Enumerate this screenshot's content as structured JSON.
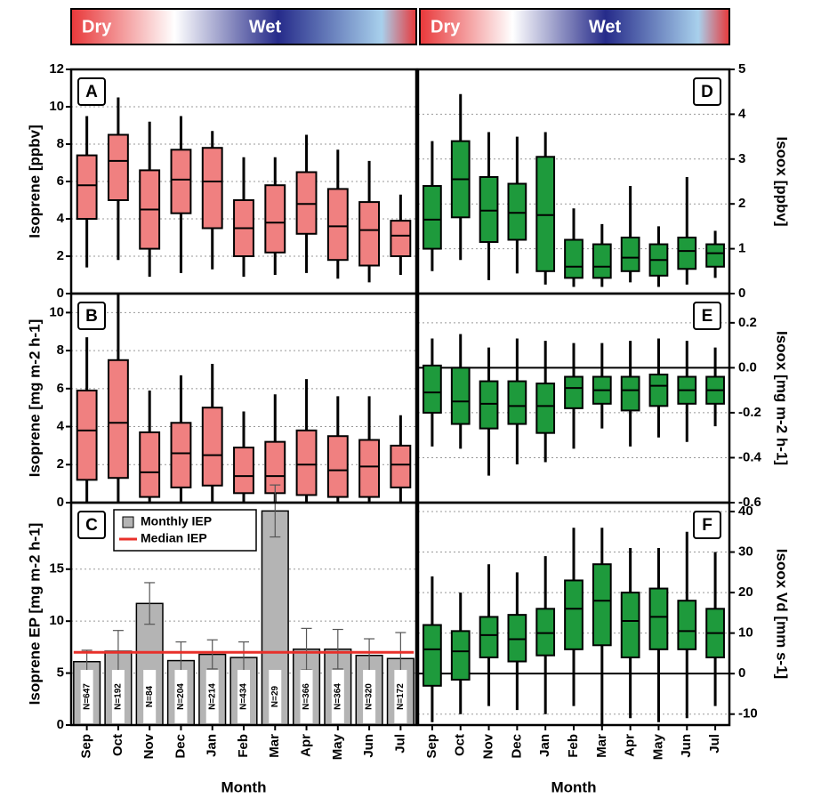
{
  "season_bars": [
    {
      "dry": "Dry",
      "wet": "Wet"
    },
    {
      "dry": "Dry",
      "wet": "Wet"
    }
  ],
  "chart_data": [
    {
      "type": "box",
      "panel_label": "A",
      "panel_label_corner": "upper left",
      "ylabel": "Isoprene [ppbv]",
      "y_axis_side": "left",
      "grid": true,
      "color": "#f08080",
      "ylim": [
        0,
        12
      ],
      "yticks": [
        0,
        2,
        4,
        6,
        8,
        10,
        12
      ],
      "whisker_low": [
        1.4,
        1.8,
        0.9,
        1.1,
        1.3,
        0.9,
        1.0,
        1.1,
        0.8,
        0.6,
        1.0
      ],
      "q1": [
        4.0,
        5.0,
        2.4,
        4.3,
        3.5,
        2.0,
        2.2,
        3.2,
        1.8,
        1.5,
        2.0
      ],
      "median": [
        5.8,
        7.1,
        4.5,
        6.1,
        6.0,
        3.5,
        3.8,
        4.8,
        3.6,
        3.4,
        3.1
      ],
      "q3": [
        7.4,
        8.5,
        6.6,
        7.7,
        7.8,
        5.0,
        5.8,
        6.5,
        5.6,
        4.9,
        3.9
      ],
      "whisker_high": [
        9.5,
        10.5,
        9.2,
        9.5,
        8.7,
        7.3,
        7.3,
        8.5,
        7.7,
        7.1,
        5.3
      ]
    },
    {
      "type": "box",
      "panel_label": "B",
      "panel_label_corner": "upper left",
      "ylabel": "Isoprene [mg m-2 h-1]",
      "y_axis_side": "left",
      "grid": true,
      "color": "#f08080",
      "ylim": [
        0,
        11
      ],
      "yticks": [
        0,
        2,
        4,
        6,
        8,
        10
      ],
      "whisker_low": [
        0,
        0,
        0,
        0,
        0,
        0,
        0,
        0,
        0,
        0,
        0
      ],
      "q1": [
        1.2,
        1.3,
        0.3,
        0.8,
        0.9,
        0.5,
        0.5,
        0.4,
        0.3,
        0.3,
        0.8
      ],
      "median": [
        3.8,
        4.2,
        1.6,
        2.6,
        2.5,
        1.4,
        1.4,
        2.0,
        1.7,
        1.9,
        2.0
      ],
      "q3": [
        5.9,
        7.5,
        3.7,
        4.2,
        5.0,
        2.9,
        3.2,
        3.8,
        3.5,
        3.3,
        3.0
      ],
      "whisker_high": [
        8.7,
        11,
        5.9,
        6.7,
        7.3,
        4.8,
        5.7,
        6.5,
        5.6,
        5.6,
        4.6
      ]
    },
    {
      "type": "bar",
      "panel_label": "C",
      "panel_label_corner": "upper left",
      "ylabel": "Isoprene EP [mg m-2 h-1]",
      "xlabel": "Month",
      "y_axis_side": "left",
      "grid": true,
      "legend": "upper left",
      "categories": [
        "Sep",
        "Oct",
        "Nov",
        "Dec",
        "Jan",
        "Feb",
        "Mar",
        "Apr",
        "May",
        "Jun",
        "Jul"
      ],
      "ylim": [
        0,
        21.4
      ],
      "yticks": [
        0,
        5,
        10,
        15
      ],
      "series": [
        {
          "name": "Monthly IEP",
          "color": "#b4b4b4",
          "values": [
            6.1,
            7.1,
            11.7,
            6.2,
            6.8,
            6.5,
            20.6,
            7.3,
            7.3,
            6.7,
            6.4
          ],
          "error": [
            1.1,
            2.0,
            2.0,
            1.8,
            1.4,
            1.5,
            2.5,
            2.0,
            1.9,
            1.6,
            2.5
          ],
          "n_labels": [
            "N=647",
            "N=192",
            "N=84",
            "N=204",
            "N=214",
            "N=434",
            "N=29",
            "N=366",
            "N=364",
            "N=320",
            "N=172"
          ]
        },
        {
          "name": "Median IEP",
          "color": "#e8302a",
          "type": "hline",
          "value": 7.0
        }
      ]
    },
    {
      "type": "box",
      "panel_label": "D",
      "panel_label_corner": "upper right",
      "ylabel": "Isoox [ppbv]",
      "y_axis_side": "right",
      "grid": true,
      "color": "#1e9a3c",
      "ylim": [
        0,
        5
      ],
      "yticks": [
        0,
        1,
        2,
        3,
        4,
        5
      ],
      "whisker_low": [
        0.5,
        0.75,
        0.3,
        0.45,
        0.2,
        0.15,
        0.15,
        0.25,
        0.15,
        0.2,
        0.35
      ],
      "q1": [
        1.0,
        1.7,
        1.15,
        1.2,
        0.5,
        0.35,
        0.35,
        0.5,
        0.4,
        0.55,
        0.6
      ],
      "median": [
        1.65,
        2.55,
        1.85,
        1.8,
        1.75,
        0.6,
        0.6,
        0.8,
        0.75,
        0.95,
        0.9
      ],
      "q3": [
        2.4,
        3.4,
        2.6,
        2.45,
        3.05,
        1.2,
        1.1,
        1.25,
        1.1,
        1.25,
        1.1
      ],
      "whisker_high": [
        3.4,
        4.45,
        3.6,
        3.5,
        3.6,
        1.9,
        1.55,
        2.4,
        1.5,
        2.6,
        1.4
      ]
    },
    {
      "type": "box",
      "panel_label": "E",
      "panel_label_corner": "upper right",
      "ylabel": "Isoox [mg m-2 h-1]",
      "y_axis_side": "right",
      "grid": true,
      "zero_line": true,
      "color": "#1e9a3c",
      "ylim": [
        -0.6,
        0.33
      ],
      "yticks": [
        -0.6,
        -0.4,
        -0.2,
        {
          "value": 0,
          "label": "0.0"
        },
        0.2
      ],
      "whisker_low": [
        -0.35,
        -0.36,
        -0.48,
        -0.43,
        -0.42,
        -0.36,
        -0.27,
        -0.35,
        -0.31,
        -0.33,
        -0.26
      ],
      "q1": [
        -0.2,
        -0.25,
        -0.27,
        -0.25,
        -0.29,
        -0.18,
        -0.16,
        -0.19,
        -0.17,
        -0.16,
        -0.16
      ],
      "median": [
        -0.11,
        -0.15,
        -0.16,
        -0.17,
        -0.17,
        -0.09,
        -0.1,
        -0.1,
        -0.08,
        -0.1,
        -0.1
      ],
      "q3": [
        0.01,
        0.0,
        -0.06,
        -0.06,
        -0.07,
        -0.04,
        -0.04,
        -0.04,
        -0.03,
        -0.04,
        -0.04
      ],
      "whisker_high": [
        0.13,
        0.15,
        0.09,
        0.13,
        0.12,
        0.11,
        0.11,
        0.12,
        0.13,
        0.12,
        0.09
      ]
    },
    {
      "type": "box",
      "panel_label": "F",
      "panel_label_corner": "upper right",
      "ylabel": "Isoox Vd [mm s-1]",
      "xlabel": "Month",
      "y_axis_side": "right",
      "grid": true,
      "zero_line": true,
      "color": "#1e9a3c",
      "categories": [
        "Sep",
        "Oct",
        "Nov",
        "Dec",
        "Jan",
        "Feb",
        "Mar",
        "Apr",
        "May",
        "Jun",
        "Jul"
      ],
      "ylim": [
        -12.7,
        42.2
      ],
      "yticks": [
        -10,
        0,
        10,
        20,
        30,
        40
      ],
      "whisker_low": [
        -12,
        -10,
        -8,
        -9,
        -10,
        -8,
        -13,
        -11,
        -12,
        -11,
        -8
      ],
      "q1": [
        -3,
        -1.5,
        4,
        3,
        4.5,
        6,
        7,
        4,
        6,
        6,
        4
      ],
      "median": [
        6,
        5.5,
        9.5,
        8.5,
        10,
        16,
        18,
        13,
        14,
        10.5,
        10
      ],
      "q3": [
        12,
        10.5,
        14,
        14.5,
        16,
        23,
        27,
        20,
        21,
        18,
        16
      ],
      "whisker_high": [
        24,
        20,
        27,
        25,
        29,
        36,
        36,
        31,
        31,
        35,
        30
      ]
    }
  ]
}
